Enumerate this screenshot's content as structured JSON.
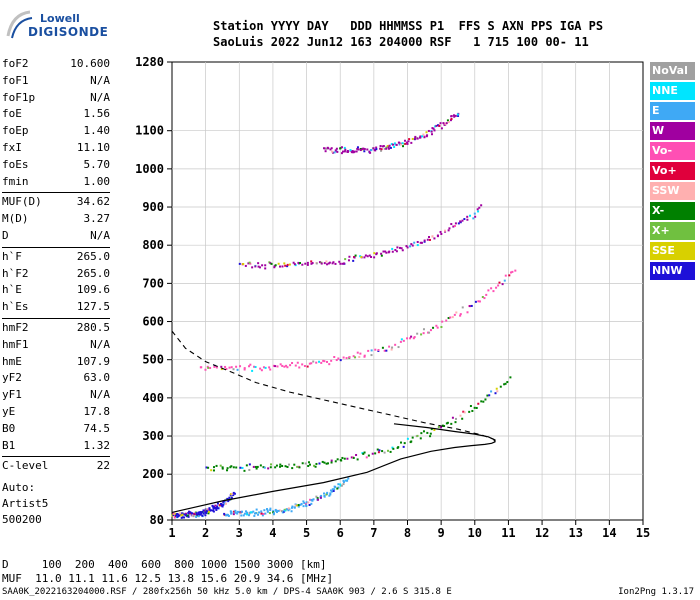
{
  "logo": {
    "line1": "Lowell",
    "line2": "DIGISONDE"
  },
  "header": {
    "line1": "Station YYYY DAY   DDD HHMMSS P1  FFS S AXN PPS IGA PS",
    "line2": "SaoLuis 2022 Jun12 163 204000 RSF   1 715 100 00- 11"
  },
  "params": [
    {
      "key": "foF2",
      "value": "10.600"
    },
    {
      "key": "foF1",
      "value": "N/A"
    },
    {
      "key": "foF1p",
      "value": "N/A"
    },
    {
      "key": "foE",
      "value": "1.56"
    },
    {
      "key": "foEp",
      "value": "1.40"
    },
    {
      "key": "fxI",
      "value": "11.10"
    },
    {
      "key": "foEs",
      "value": "5.70"
    },
    {
      "key": "fmin",
      "value": "1.00"
    },
    {
      "key": "MUF(D)",
      "value": "34.62"
    },
    {
      "key": "M(D)",
      "value": "3.27"
    },
    {
      "key": "D",
      "value": "N/A"
    },
    {
      "key": "h`F",
      "value": "265.0"
    },
    {
      "key": "h`F2",
      "value": "265.0"
    },
    {
      "key": "h`E",
      "value": "109.6"
    },
    {
      "key": "h`Es",
      "value": "127.5"
    },
    {
      "key": "hmF2",
      "value": "280.5"
    },
    {
      "key": "hmF1",
      "value": "N/A"
    },
    {
      "key": "hmE",
      "value": "107.9"
    },
    {
      "key": "yF2",
      "value": "63.0"
    },
    {
      "key": "yF1",
      "value": "N/A"
    },
    {
      "key": "yE",
      "value": "17.8"
    },
    {
      "key": "B0",
      "value": "74.5"
    },
    {
      "key": "B1",
      "value": "1.32"
    },
    {
      "key": "C-level",
      "value": "22"
    }
  ],
  "auto": {
    "label": "Auto:",
    "name": "Artist5",
    "code": "500200"
  },
  "legend": [
    {
      "label": "NoVal",
      "color": "#a0a0a0"
    },
    {
      "label": "NNE",
      "color": "#00e5ff"
    },
    {
      "label": "E",
      "color": "#3fa9f5"
    },
    {
      "label": "W",
      "color": "#a000a0"
    },
    {
      "label": "Vo-",
      "color": "#ff4fb4"
    },
    {
      "label": "Vo+",
      "color": "#e0003c"
    },
    {
      "label": "SSW",
      "color": "#ffb0b0"
    },
    {
      "label": "X-",
      "color": "#008000"
    },
    {
      "label": "X+",
      "color": "#70c040"
    },
    {
      "label": "SSE",
      "color": "#d8d000"
    },
    {
      "label": "NNW",
      "color": "#1e10d8"
    }
  ],
  "footer": {
    "line1": "D     100  200  400  600  800 1000 1500 3000 [km]",
    "line2": "MUF  11.0 11.1 11.6 12.5 13.8 15.6 20.9 34.6 [MHz]",
    "source": "SAA0K_2022163204000.RSF / 280fx256h 50 kHz 5.0 km / DPS-4 SAA0K 903 / 2.6 S 315.8 E",
    "version": "Ion2Png 1.3.17"
  },
  "chart_data": {
    "type": "scatter",
    "xlabel": "",
    "ylabel": "",
    "xlim": [
      1,
      15
    ],
    "ylim": [
      80,
      1280
    ],
    "x_ticks": [
      1,
      2,
      3,
      4,
      5,
      6,
      7,
      8,
      9,
      10,
      11,
      12,
      13,
      14,
      15
    ],
    "y_ticks": [
      80,
      200,
      300,
      400,
      500,
      600,
      700,
      800,
      900,
      1000,
      1100,
      1280
    ],
    "grid": true,
    "traces": [
      {
        "name": "E-layer echoes",
        "color": "#1e10d8",
        "x_range": [
          1.0,
          2.8
        ],
        "h_range": [
          95,
          150
        ]
      },
      {
        "name": "Es echoes",
        "color": "#3fa9f5",
        "x_range": [
          2.5,
          6.2
        ],
        "h_range": [
          100,
          190
        ]
      },
      {
        "name": "F2 trace",
        "color": "#008000",
        "x_range": [
          2.0,
          11.0
        ],
        "h_range": [
          220,
          450
        ]
      },
      {
        "name": "F2 2nd hop",
        "color": "#ff4fb4",
        "x_range": [
          1.8,
          11.2
        ],
        "h_range": [
          480,
          740
        ]
      },
      {
        "name": "F2 3rd hop",
        "color": "#a000a0",
        "x_range": [
          3.0,
          10.2
        ],
        "h_range": [
          750,
          900
        ]
      },
      {
        "name": "F2 4th hop",
        "color": "#a000a0",
        "x_range": [
          5.5,
          9.5
        ],
        "h_range": [
          1050,
          1150
        ]
      }
    ],
    "profile": {
      "solid_x": [
        1.0,
        1.6,
        2.5,
        4.0,
        5.5,
        6.8,
        7.8,
        8.7,
        9.4,
        9.9,
        10.3,
        10.5,
        10.6,
        10.6,
        10.4,
        10.0,
        9.4,
        8.6,
        7.6
      ],
      "solid_h": [
        100,
        112,
        130,
        155,
        178,
        205,
        240,
        260,
        270,
        275,
        278,
        281,
        285,
        290,
        298,
        305,
        312,
        322,
        332
      ],
      "dashed_x": [
        1.0,
        1.4,
        2.0,
        2.7,
        3.5,
        4.5,
        5.5,
        6.5,
        7.5,
        8.5,
        9.5,
        10.2,
        10.55,
        10.6
      ],
      "dashed_h": [
        575,
        530,
        495,
        470,
        440,
        415,
        395,
        375,
        355,
        335,
        318,
        303,
        292,
        286
      ]
    }
  }
}
